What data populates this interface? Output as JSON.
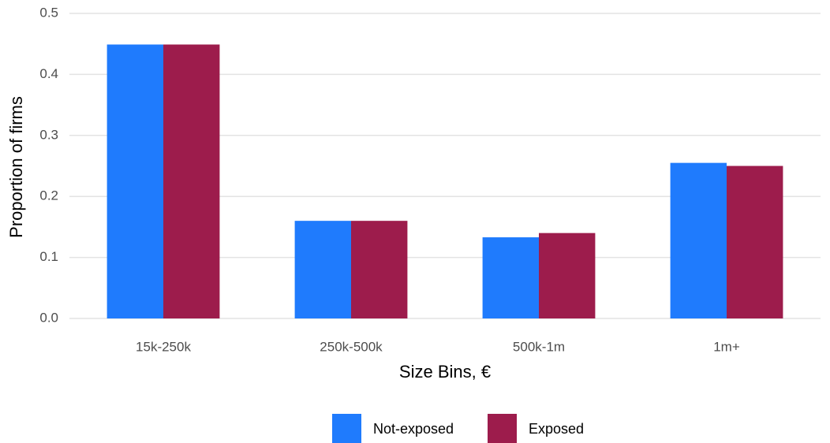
{
  "chart_data": {
    "type": "bar",
    "x_label": "Size Bins, €",
    "y_label": "Proportion of firms",
    "categories": [
      "15k-250k",
      "250k-500k",
      "500k-1m",
      "1m+"
    ],
    "series": [
      {
        "name": "Not-exposed",
        "color": "#1f7bfd",
        "values": [
          0.449,
          0.16,
          0.133,
          0.255
        ]
      },
      {
        "name": "Exposed",
        "color": "#9d1c4c",
        "values": [
          0.449,
          0.16,
          0.14,
          0.25
        ]
      }
    ],
    "ylim": [
      0,
      0.5
    ],
    "yticks": [
      {
        "value": 0,
        "label": "0.0"
      },
      0.1,
      0.2,
      0.3,
      0.4,
      0.5
    ],
    "grid": true,
    "legend": "bottom"
  }
}
